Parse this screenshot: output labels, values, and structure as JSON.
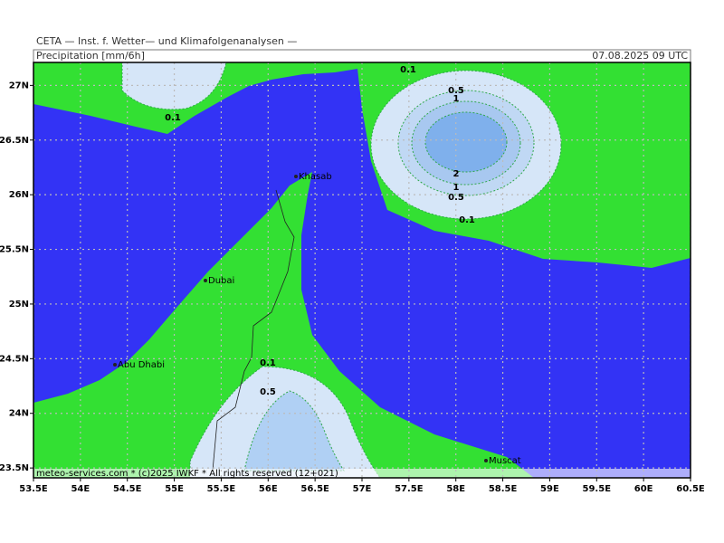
{
  "header": {
    "title": "CETA — Inst. f. Wetter— und Klimafolgenanalysen —",
    "variable": "Precipitation [mm/6h]",
    "valid_time": "07.08.2025 09 UTC"
  },
  "map": {
    "xlim": [
      53.5,
      60.5
    ],
    "ylim": [
      23.41,
      27.21
    ],
    "grid": true,
    "xticks": [
      {
        "value": 53.5,
        "label": "53.5E"
      },
      {
        "value": 54,
        "label": "54E"
      },
      {
        "value": 54.5,
        "label": "54.5E"
      },
      {
        "value": 55,
        "label": "55E"
      },
      {
        "value": 55.5,
        "label": "55.5E"
      },
      {
        "value": 56,
        "label": "56E"
      },
      {
        "value": 56.5,
        "label": "56.5E"
      },
      {
        "value": 57,
        "label": "57E"
      },
      {
        "value": 57.5,
        "label": "57.5E"
      },
      {
        "value": 58,
        "label": "58E"
      },
      {
        "value": 58.5,
        "label": "58.5E"
      },
      {
        "value": 59,
        "label": "59E"
      },
      {
        "value": 59.5,
        "label": "59.5E"
      },
      {
        "value": 60,
        "label": "60E"
      },
      {
        "value": 60.5,
        "label": "60.5E"
      }
    ],
    "yticks": [
      {
        "value": 23.5,
        "label": "23.5N"
      },
      {
        "value": 24,
        "label": "24N"
      },
      {
        "value": 24.5,
        "label": "24.5N"
      },
      {
        "value": 25,
        "label": "25N"
      },
      {
        "value": 25.5,
        "label": "25.5N"
      },
      {
        "value": 26,
        "label": "26N"
      },
      {
        "value": 26.5,
        "label": "26.5N"
      },
      {
        "value": 27,
        "label": "27N"
      }
    ],
    "places": [
      "Khasab",
      "Dubai",
      "Abu Dhabi",
      "Muscat"
    ],
    "contour_labels": [
      "0.1",
      "0.5",
      "1",
      "2",
      "1",
      "0.5",
      "0.1",
      "0.1",
      "0.1",
      "0.5"
    ],
    "footer": "meteo-services.com * (c)2025 IWKF * All rights reserved (12+021)"
  }
}
